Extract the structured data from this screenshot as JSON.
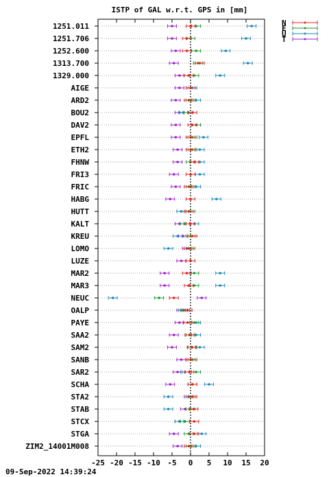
{
  "chart_data": {
    "type": "scatter",
    "title": "ISTP of GAL w.r.t. GPS in [mm]",
    "xlim": [
      -25,
      20
    ],
    "xticks": [
      -25,
      -20,
      -15,
      -10,
      -5,
      0,
      5,
      10,
      15,
      20
    ],
    "grid": true,
    "legend_placement": "top-right outside plot",
    "categories": [
      "1251.011",
      "1251.706",
      "1252.600",
      "1313.700",
      "1329.000",
      "AIGE",
      "ARD2",
      "BOU2",
      "DAV2",
      "EPFL",
      "ETH2",
      "FHNW",
      "FRI3",
      "FRIC",
      "HABG",
      "HUTT",
      "KALT",
      "KREU",
      "LOMO",
      "LUZE",
      "MAR2",
      "MAR3",
      "NEUC",
      "OALP",
      "PAYE",
      "SAA2",
      "SAM2",
      "SANB",
      "SAR2",
      "SCHA",
      "STA2",
      "STAB",
      "STCX",
      "STGA",
      "ZIM2_14001M008"
    ],
    "series": [
      {
        "name": "N",
        "color": "#e0201b",
        "values": [
          0.0,
          -1.0,
          -1.0,
          2.5,
          -0.5,
          0.0,
          -0.5,
          0.5,
          0.5,
          0.0,
          0.0,
          1.0,
          0.0,
          -0.5,
          0.0,
          -0.5,
          0.0,
          0.5,
          -0.5,
          0.0,
          -1.0,
          -0.5,
          -4.5,
          -0.8,
          -0.8,
          -0.3,
          0.3,
          0.0,
          -0.3,
          0.5,
          0.5,
          0.8,
          1.0,
          1.0,
          -0.5
        ]
      },
      {
        "name": "E",
        "color": "#1a9a2c",
        "values": [
          1.5,
          0.0,
          1.5,
          2.0,
          1.0,
          0.0,
          0.0,
          -0.5,
          1.5,
          0.5,
          0.5,
          0.0,
          0.0,
          0.0,
          0.0,
          0.0,
          -1.5,
          0.0,
          0.0,
          0.0,
          1.0,
          1.0,
          -8.5,
          -1.5,
          1.0,
          0.0,
          0.5,
          0.5,
          1.5,
          0.5,
          0.0,
          0.0,
          -1.5,
          -0.5,
          0.0
        ]
      },
      {
        "name": "U",
        "color": "#1a86b8",
        "values": [
          16.5,
          15.0,
          9.5,
          15.5,
          8.0,
          0.5,
          1.5,
          -2.0,
          1.5,
          3.5,
          2.5,
          2.5,
          2.5,
          1.5,
          7.0,
          -2.5,
          1.0,
          -3.5,
          -6.0,
          0.0,
          8.0,
          8.0,
          -21.0,
          -2.0,
          1.5,
          1.5,
          2.5,
          0.5,
          -1.5,
          5.0,
          -6.0,
          -6.0,
          -3.0,
          3.0,
          1.5
        ]
      },
      {
        "name": "T",
        "color": "#a020c8",
        "values": [
          -5.0,
          -5.0,
          -4.0,
          -4.5,
          -3.0,
          -3.0,
          -4.0,
          -3.0,
          -4.0,
          -4.0,
          -3.5,
          -3.5,
          -4.5,
          -4.0,
          -5.5,
          -2.5,
          -3.0,
          -2.0,
          -1.0,
          -2.5,
          -7.0,
          -7.0,
          3.0,
          -2.5,
          -3.0,
          -4.5,
          -5.0,
          -2.5,
          -3.5,
          -5.5,
          -0.5,
          -1.5,
          -3.0,
          -4.5,
          -3.5
        ]
      }
    ]
  },
  "footer_timestamp": "09-Sep-2022 14:39:24"
}
